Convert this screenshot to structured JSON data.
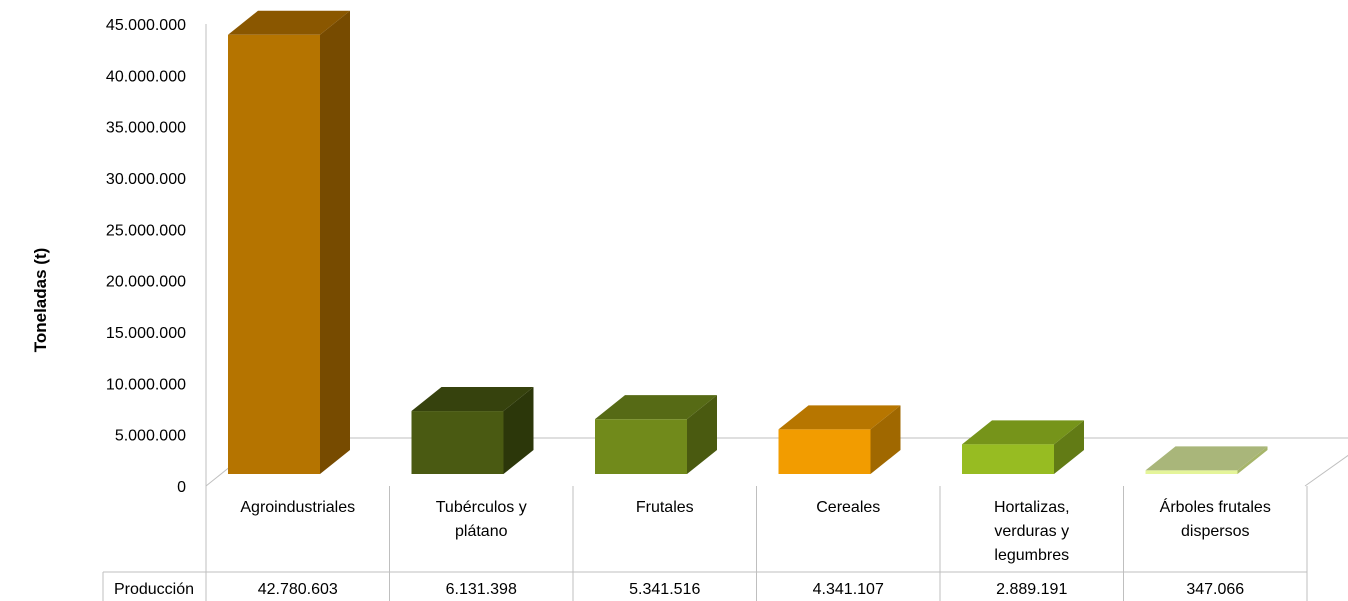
{
  "chart_data": {
    "type": "bar",
    "ylabel": "Toneladas (t)",
    "ylim": [
      0,
      45000000
    ],
    "yticks": [
      "0",
      "5.000.000",
      "10.000.000",
      "15.000.000",
      "20.000.000",
      "25.000.000",
      "30.000.000",
      "35.000.000",
      "40.000.000",
      "45.000.000"
    ],
    "categories": [
      [
        "Agroindustriales"
      ],
      [
        "Tubérculos y",
        "plátano"
      ],
      [
        "Frutales"
      ],
      [
        "Cereales"
      ],
      [
        "Hortalizas,",
        "verduras y",
        "legumbres"
      ],
      [
        "Árboles frutales",
        "dispersos"
      ]
    ],
    "series": [
      {
        "name": "Producción",
        "values": [
          42780603,
          6131398,
          5341516,
          4341107,
          2889191,
          347066
        ],
        "labels": [
          "42.780.603",
          "6.131.398",
          "5.341.516",
          "4.341.107",
          "2.889.191",
          "347.066"
        ]
      }
    ],
    "bar_colors": [
      {
        "front": "#B57400",
        "side": "#774B00",
        "top": "#8A5700"
      },
      {
        "front": "#4A5A12",
        "side": "#2C370A",
        "top": "#36420D"
      },
      {
        "front": "#718A1B",
        "side": "#4A5A10",
        "top": "#566A15"
      },
      {
        "front": "#F29C00",
        "side": "#A06800",
        "top": "#B77600"
      },
      {
        "front": "#97BC22",
        "side": "#627B15",
        "top": "#76941A"
      },
      {
        "front": "#E5F59A",
        "side": "#A6B56A",
        "top": "#A9B67A"
      }
    ],
    "grid": false,
    "legend": "data-table"
  }
}
